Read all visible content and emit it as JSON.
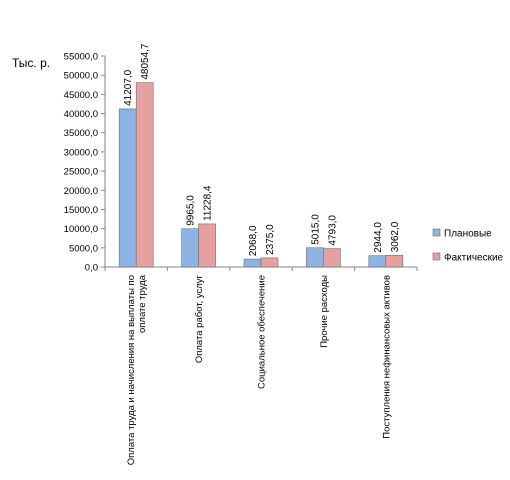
{
  "unit_label": "Тыс. р.",
  "chart_data": {
    "type": "bar",
    "categories": [
      [
        "Оплата труда и начисления на выплаты по",
        "оплате труда"
      ],
      [
        "Оплата работ, услуг"
      ],
      [
        "Социальное обеспечение"
      ],
      [
        "Прочие расходы"
      ],
      [
        "Поступления нефинансовых активов"
      ]
    ],
    "series": [
      {
        "name": "Плановые",
        "color": "#8eb4e3",
        "values": [
          41207.0,
          9965.0,
          2068.0,
          5015.0,
          2944.0
        ],
        "labels": [
          "41207,0",
          "9965,0",
          "2068,0",
          "5015,0",
          "2944,0"
        ]
      },
      {
        "name": "Фактические",
        "color": "#e6a0a0",
        "values": [
          48054.7,
          11228.4,
          2375.0,
          4793.0,
          3062.0
        ],
        "labels": [
          "48054,7",
          "11228,4",
          "2375,0",
          "4793,0",
          "3062,0"
        ]
      }
    ],
    "ylim": [
      0,
      55000
    ],
    "yticks": [
      "0,0",
      "5000,0",
      "10000,0",
      "15000,0",
      "20000,0",
      "25000,0",
      "30000,0",
      "35000,0",
      "40000,0",
      "45000,0",
      "50000,0",
      "55000,0"
    ],
    "grid": false,
    "legend": "right"
  }
}
